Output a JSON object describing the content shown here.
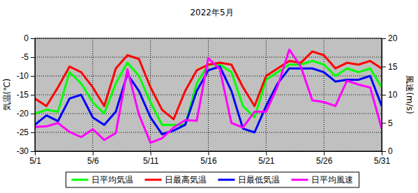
{
  "chart_data": {
    "type": "line",
    "title": "2022年5月",
    "ylabel": "気温(℃)",
    "y2label": "風速(m/s)",
    "categories": [
      "5/1",
      null,
      null,
      null,
      null,
      "5/6",
      null,
      null,
      null,
      null,
      "5/11",
      null,
      null,
      null,
      null,
      "5/16",
      null,
      null,
      null,
      null,
      "5/21",
      null,
      null,
      null,
      null,
      "5/26",
      null,
      null,
      null,
      null,
      "5/31"
    ],
    "ylim": [
      -30,
      0
    ],
    "yticks": [
      -30,
      -25,
      -20,
      -15,
      -10,
      -5,
      0
    ],
    "y2lim": [
      0,
      20
    ],
    "y2ticks": [
      0,
      5,
      10,
      15,
      20
    ],
    "grid": true,
    "legend": "bottom",
    "series": [
      {
        "name": "日平均気温",
        "color": "#00ff00",
        "values": [
          -20,
          -19,
          -19.5,
          -9,
          -12,
          -17,
          -20,
          -12,
          -6.5,
          -10,
          -17,
          -23,
          -23,
          -23,
          -12,
          -7,
          -7,
          -9,
          -18,
          -21,
          -11,
          -9,
          -7,
          -7,
          -6,
          -7,
          -10,
          -8,
          -9,
          -8,
          -13
        ]
      },
      {
        "name": "日最高気温",
        "color": "#ff0000",
        "values": [
          -16,
          -18,
          -13,
          -7.5,
          -9,
          -13,
          -18,
          -8,
          -4.5,
          -5.5,
          -13,
          -19,
          -21.5,
          -14,
          -8.5,
          -7,
          -6.5,
          -7,
          -13,
          -18,
          -10,
          -8,
          -6,
          -6.5,
          -3.5,
          -4.5,
          -8,
          -6.5,
          -7,
          -6,
          -8
        ]
      },
      {
        "name": "日最低気温",
        "color": "#0000ff",
        "values": [
          -23,
          -20.5,
          -22,
          -16,
          -15,
          -21,
          -23,
          -19.5,
          -9.5,
          -14,
          -21,
          -25.5,
          -24.5,
          -23,
          -14,
          -8.5,
          -7.5,
          -14,
          -24,
          -25,
          -18,
          -12,
          -8,
          -8,
          -8,
          -9,
          -11.5,
          -11,
          -11,
          -10,
          -18
        ]
      },
      {
        "name": "日平均風速",
        "color": "#ff00ff",
        "axis": "y2",
        "values": [
          4.3,
          4.4,
          5,
          3.4,
          2.5,
          3.9,
          2,
          3.2,
          14.5,
          6.5,
          1.5,
          2.3,
          4.2,
          5.5,
          5.4,
          16.5,
          14.5,
          5,
          4.2,
          7,
          7,
          11.5,
          18,
          15,
          9,
          8.7,
          8,
          12.5,
          11.8,
          11.3,
          4
        ]
      }
    ]
  }
}
